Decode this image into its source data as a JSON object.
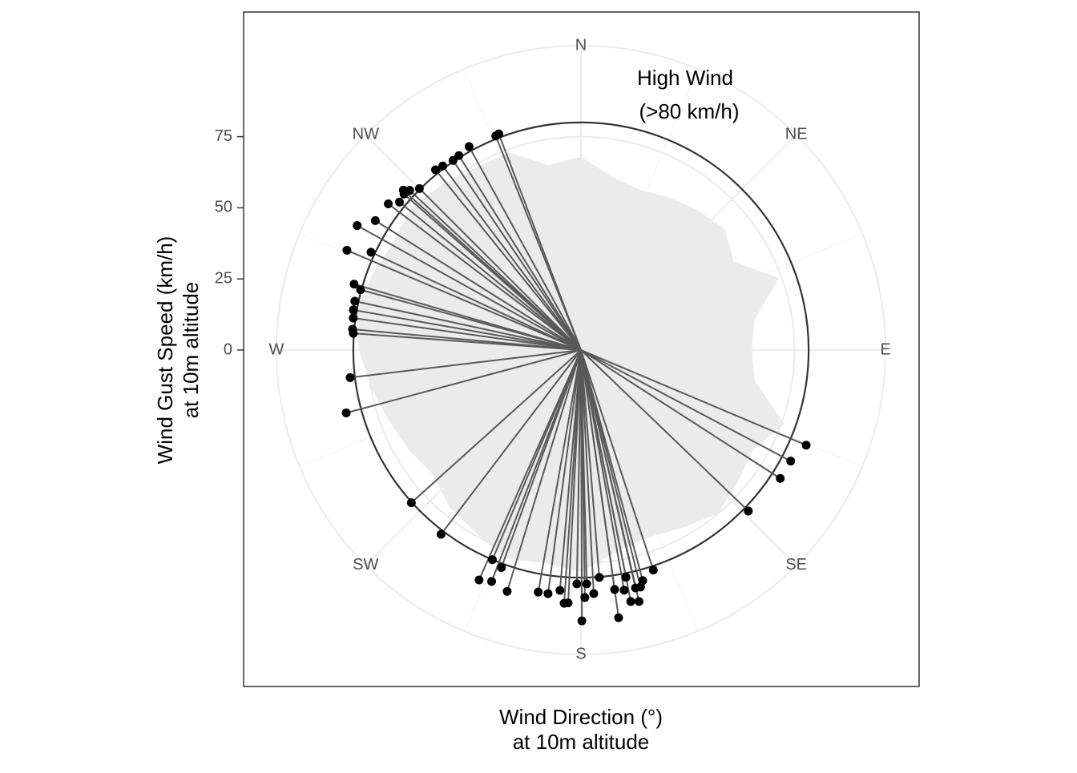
{
  "chart_data": {
    "type": "polar",
    "xlabel": [
      "Wind Direction (°)",
      "at 10m altitude"
    ],
    "ylabel": [
      "Wind Gust Speed (km/h)",
      "at 10m altitude"
    ],
    "annotation": [
      "High Wind",
      "(>80 km/h)"
    ],
    "threshold": 80,
    "xlim": [
      0,
      360
    ],
    "ylim": [
      0,
      107
    ],
    "yticks": [
      0,
      25,
      50,
      75
    ],
    "xticks": [
      {
        "value": 0,
        "label": "N"
      },
      {
        "value": 45,
        "label": "NE"
      },
      {
        "value": 90,
        "label": "E"
      },
      {
        "value": 135,
        "label": "SE"
      },
      {
        "value": 180,
        "label": "S"
      },
      {
        "value": 225,
        "label": "SW"
      },
      {
        "value": 270,
        "label": "W"
      },
      {
        "value": 315,
        "label": "NW"
      }
    ],
    "xminor": [
      22.5,
      67.5,
      112.5,
      157.5,
      202.5,
      247.5,
      292.5,
      337.5
    ],
    "grid": true,
    "area": {
      "color": "#ebebeb",
      "x": [
        0,
        10,
        20,
        30,
        40,
        50,
        60,
        70,
        80,
        90,
        100,
        110,
        120,
        130,
        140,
        150,
        160,
        170,
        180,
        190,
        200,
        210,
        220,
        230,
        240,
        250,
        260,
        270,
        280,
        290,
        300,
        310,
        320,
        330,
        340,
        350
      ],
      "values": [
        68,
        62,
        60,
        62,
        64,
        66,
        62,
        74,
        62,
        60,
        62,
        76,
        70,
        72,
        75,
        72,
        70,
        72,
        78,
        76,
        78,
        74,
        72,
        68,
        70,
        72,
        75,
        78,
        80,
        78,
        76,
        78,
        76,
        74,
        74,
        66
      ]
    },
    "points": {
      "color": "#000000",
      "line_color": "#595959",
      "x": [
        339.2,
        338.3,
        331.2,
        327.9,
        326,
        323.1,
        321.1,
        315,
        313,
        312,
        311.4,
        309.2,
        307.2,
        302.2,
        299.1,
        295,
        293.1,
        286.2,
        285.3,
        282.2,
        280,
        278,
        275.2,
        274.2,
        263.2,
        255,
        228,
        217.2,
        202.9,
        203.9,
        201.1,
        200.1,
        197,
        190,
        187.7,
        185,
        183.8,
        182.9,
        181,
        179.8,
        179.1,
        178.6,
        177,
        175.4,
        172,
        172,
        169.8,
        168.8,
        168.8,
        167.1,
        167,
        165.9,
        165,
        161.8,
        133.9,
        122.8,
        117.9,
        112.9
      ],
      "values": [
        81.3,
        81,
        81.6,
        80.7,
        80.4,
        80.9,
        81.4,
        80.3,
        82.3,
        84,
        82.9,
        82.3,
        85,
        85.4,
        90,
        81.4,
        89.4,
        83,
        80.3,
        81.3,
        81.2,
        80.8,
        80.6,
        80.2,
        81.7,
        85.4,
        80.2,
        81.3,
        80,
        88.4,
        87.2,
        81.4,
        88.7,
        86.4,
        86.4,
        84.8,
        89.2,
        89,
        82.2,
        95.2,
        87,
        82.2,
        85.7,
        80.2,
        85,
        95,
        85.8,
        81.4,
        90.1,
        85.8,
        90.7,
        85.9,
        83.9,
        81.4,
        81.6,
        83.3,
        83.4,
        85.9
      ]
    }
  }
}
